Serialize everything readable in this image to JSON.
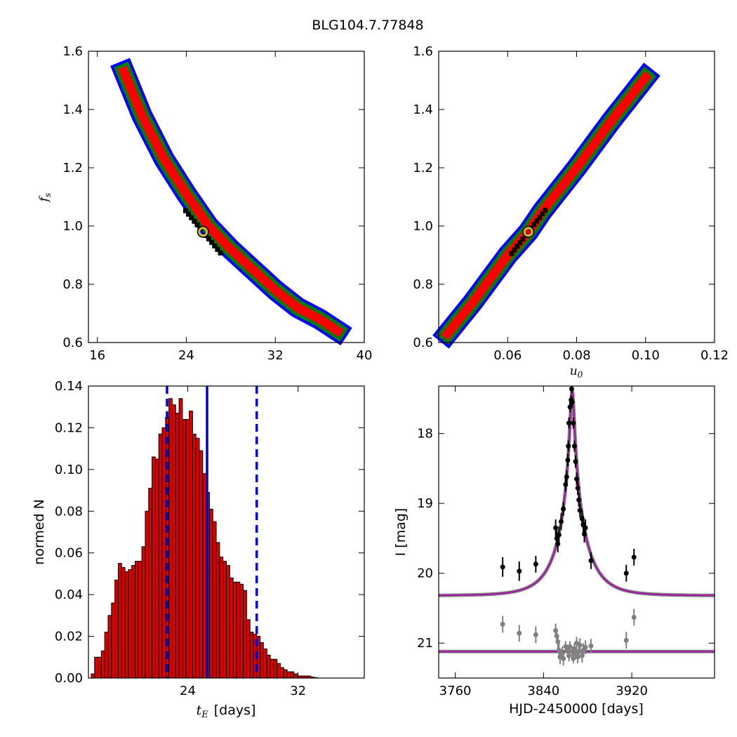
{
  "figure": {
    "title": "BLG104.7.77848"
  },
  "chart_data": [
    {
      "panel": "top-left",
      "type": "heatmap",
      "xlabel": "",
      "ylabel": "f_s",
      "xlim": [
        15.2,
        40
      ],
      "ylim": [
        0.6,
        1.6
      ],
      "xticks": [
        "16",
        "24",
        "32",
        "40"
      ],
      "yticks": [
        "0.6",
        "0.8",
        "1.0",
        "1.2",
        "1.4",
        "1.6"
      ],
      "ridge": [
        [
          18.4,
          1.53
        ],
        [
          20.0,
          1.38
        ],
        [
          22.0,
          1.23
        ],
        [
          24.0,
          1.11
        ],
        [
          26.0,
          1.0
        ],
        [
          28.0,
          0.92
        ],
        [
          30.0,
          0.85
        ],
        [
          32.0,
          0.78
        ],
        [
          34.0,
          0.72
        ],
        [
          36.0,
          0.68
        ],
        [
          37.6,
          0.64
        ]
      ],
      "best_fit": [
        25.5,
        0.98
      ],
      "colors": {
        "sigma1": "#ff0000",
        "sigma2": "#008000",
        "sigma3": "#0000ff",
        "best": "#000000",
        "marker": "#d4b73a"
      }
    },
    {
      "panel": "top-right",
      "type": "heatmap",
      "xlabel": "u_0",
      "ylabel": "",
      "xlim": [
        0.04,
        0.12
      ],
      "ylim": [
        0.6,
        1.6
      ],
      "xticks": [
        "0.06",
        "0.08",
        "0.10",
        "0.12"
      ],
      "yticks": [
        "0.6",
        "0.8",
        "1.0",
        "1.2",
        "1.4",
        "1.6"
      ],
      "ridge": [
        [
          0.0425,
          0.63
        ],
        [
          0.05,
          0.74
        ],
        [
          0.06,
          0.9
        ],
        [
          0.066,
          0.98
        ],
        [
          0.07,
          1.05
        ],
        [
          0.08,
          1.2
        ],
        [
          0.09,
          1.36
        ],
        [
          0.1,
          1.51
        ]
      ],
      "best_fit": [
        0.066,
        0.98
      ],
      "colors": {
        "sigma1": "#ff0000",
        "sigma2": "#008000",
        "sigma3": "#0000ff",
        "best": "#000000",
        "marker": "#d4b73a"
      }
    },
    {
      "panel": "bottom-left",
      "type": "bar",
      "xlabel": "t_E",
      "xlabel_unit": "[days]",
      "ylabel": "normed N",
      "xlim": [
        16.8,
        36.8
      ],
      "ylim": [
        0,
        0.14
      ],
      "xticks": [
        "24",
        "32"
      ],
      "yticks": [
        "0.00",
        "0.02",
        "0.04",
        "0.06",
        "0.08",
        "0.10",
        "0.12",
        "0.14"
      ],
      "bin_width": 0.245,
      "x_start": 17.0,
      "values": [
        0.002,
        0.01,
        0.01,
        0.013,
        0.022,
        0.03,
        0.036,
        0.047,
        0.055,
        0.053,
        0.051,
        0.052,
        0.054,
        0.056,
        0.056,
        0.063,
        0.08,
        0.091,
        0.106,
        0.105,
        0.117,
        0.12,
        0.125,
        0.134,
        0.131,
        0.127,
        0.134,
        0.124,
        0.124,
        0.128,
        0.117,
        0.115,
        0.109,
        0.098,
        0.089,
        0.081,
        0.075,
        0.065,
        0.058,
        0.056,
        0.054,
        0.048,
        0.046,
        0.046,
        0.045,
        0.042,
        0.028,
        0.022,
        0.021,
        0.02,
        0.017,
        0.014,
        0.011,
        0.009,
        0.009,
        0.007,
        0.005,
        0.004,
        0.003,
        0.003,
        0.002,
        0.001,
        0.001,
        0.001,
        0.001,
        0.0005,
        0.0002
      ],
      "median_line": 25.4,
      "dashed_lines": [
        22.5,
        29.0
      ],
      "colors": {
        "bar": "#dd0000",
        "edge": "#000000",
        "lines": "#0000cc"
      }
    },
    {
      "panel": "bottom-right",
      "type": "scatter",
      "xlabel": "HJD-2450000 [days]",
      "ylabel": "I [mag]",
      "xlim": [
        3745,
        3995
      ],
      "ylim": [
        21.5,
        17.32
      ],
      "xticks": [
        "3760",
        "3840",
        "3920"
      ],
      "yticks": [
        "18",
        "19",
        "20",
        "21"
      ],
      "model": {
        "t0": 3866,
        "u0": 0.066,
        "tE": 25.5,
        "fs": 0.98,
        "baseline": 20.32
      },
      "points": [
        [
          3803,
          19.91,
          0.14
        ],
        [
          3818,
          19.97,
          0.14
        ],
        [
          3833,
          19.87,
          0.12
        ],
        [
          3851,
          19.35,
          0.12
        ],
        [
          3852,
          19.5,
          0.12
        ],
        [
          3853,
          19.58,
          0.12
        ],
        [
          3854,
          19.45,
          0.12
        ],
        [
          3856,
          19.26,
          0.12
        ],
        [
          3858,
          19.08,
          0.1
        ],
        [
          3860,
          18.73,
          0.1
        ],
        [
          3861,
          18.62,
          0.09
        ],
        [
          3862,
          18.38,
          0.09
        ],
        [
          3862.5,
          18.18,
          0.08
        ],
        [
          3863,
          17.85,
          0.08
        ],
        [
          3864,
          17.62,
          0.07
        ],
        [
          3865,
          17.52,
          0.07
        ],
        [
          3865.5,
          17.36,
          0.06
        ],
        [
          3866,
          17.55,
          0.07
        ],
        [
          3867,
          17.85,
          0.08
        ],
        [
          3868,
          18.18,
          0.08
        ],
        [
          3869,
          18.4,
          0.09
        ],
        [
          3870,
          18.65,
          0.09
        ],
        [
          3871,
          18.78,
          0.1
        ],
        [
          3872,
          18.95,
          0.1
        ],
        [
          3873,
          19.1,
          0.1
        ],
        [
          3875,
          19.22,
          0.12
        ],
        [
          3876,
          19.3,
          0.12
        ],
        [
          3877,
          19.44,
          0.12
        ],
        [
          3878,
          19.35,
          0.12
        ],
        [
          3883,
          19.82,
          0.12
        ],
        [
          3915,
          20.0,
          0.12
        ],
        [
          3922,
          19.77,
          0.12
        ]
      ],
      "residuals_offset": 21.12,
      "residuals": [
        [
          3803,
          20.73,
          0.12
        ],
        [
          3818,
          20.86,
          0.12
        ],
        [
          3833,
          20.88,
          0.12
        ],
        [
          3851,
          20.82,
          0.1
        ],
        [
          3852,
          20.9,
          0.1
        ],
        [
          3853,
          20.98,
          0.1
        ],
        [
          3854,
          21.1,
          0.1
        ],
        [
          3855,
          21.2,
          0.1
        ],
        [
          3857,
          21.15,
          0.1
        ],
        [
          3858,
          21.22,
          0.1
        ],
        [
          3860,
          21.05,
          0.08
        ],
        [
          3862,
          21.1,
          0.08
        ],
        [
          3863,
          21.18,
          0.08
        ],
        [
          3864,
          21.05,
          0.08
        ],
        [
          3866,
          21.12,
          0.07
        ],
        [
          3867,
          21.22,
          0.07
        ],
        [
          3868,
          21.08,
          0.08
        ],
        [
          3869,
          21.15,
          0.08
        ],
        [
          3870,
          21.0,
          0.09
        ],
        [
          3871,
          21.2,
          0.09
        ],
        [
          3872,
          21.12,
          0.09
        ],
        [
          3873,
          21.03,
          0.1
        ],
        [
          3875,
          21.18,
          0.1
        ],
        [
          3876,
          21.1,
          0.1
        ],
        [
          3878,
          21.06,
          0.1
        ],
        [
          3883,
          21.04,
          0.1
        ],
        [
          3915,
          20.96,
          0.12
        ],
        [
          3922,
          20.63,
          0.12
        ]
      ],
      "colors": {
        "model": "#aa11aa",
        "band": "#808080",
        "points": "#000000",
        "residuals": "#808080"
      }
    }
  ]
}
